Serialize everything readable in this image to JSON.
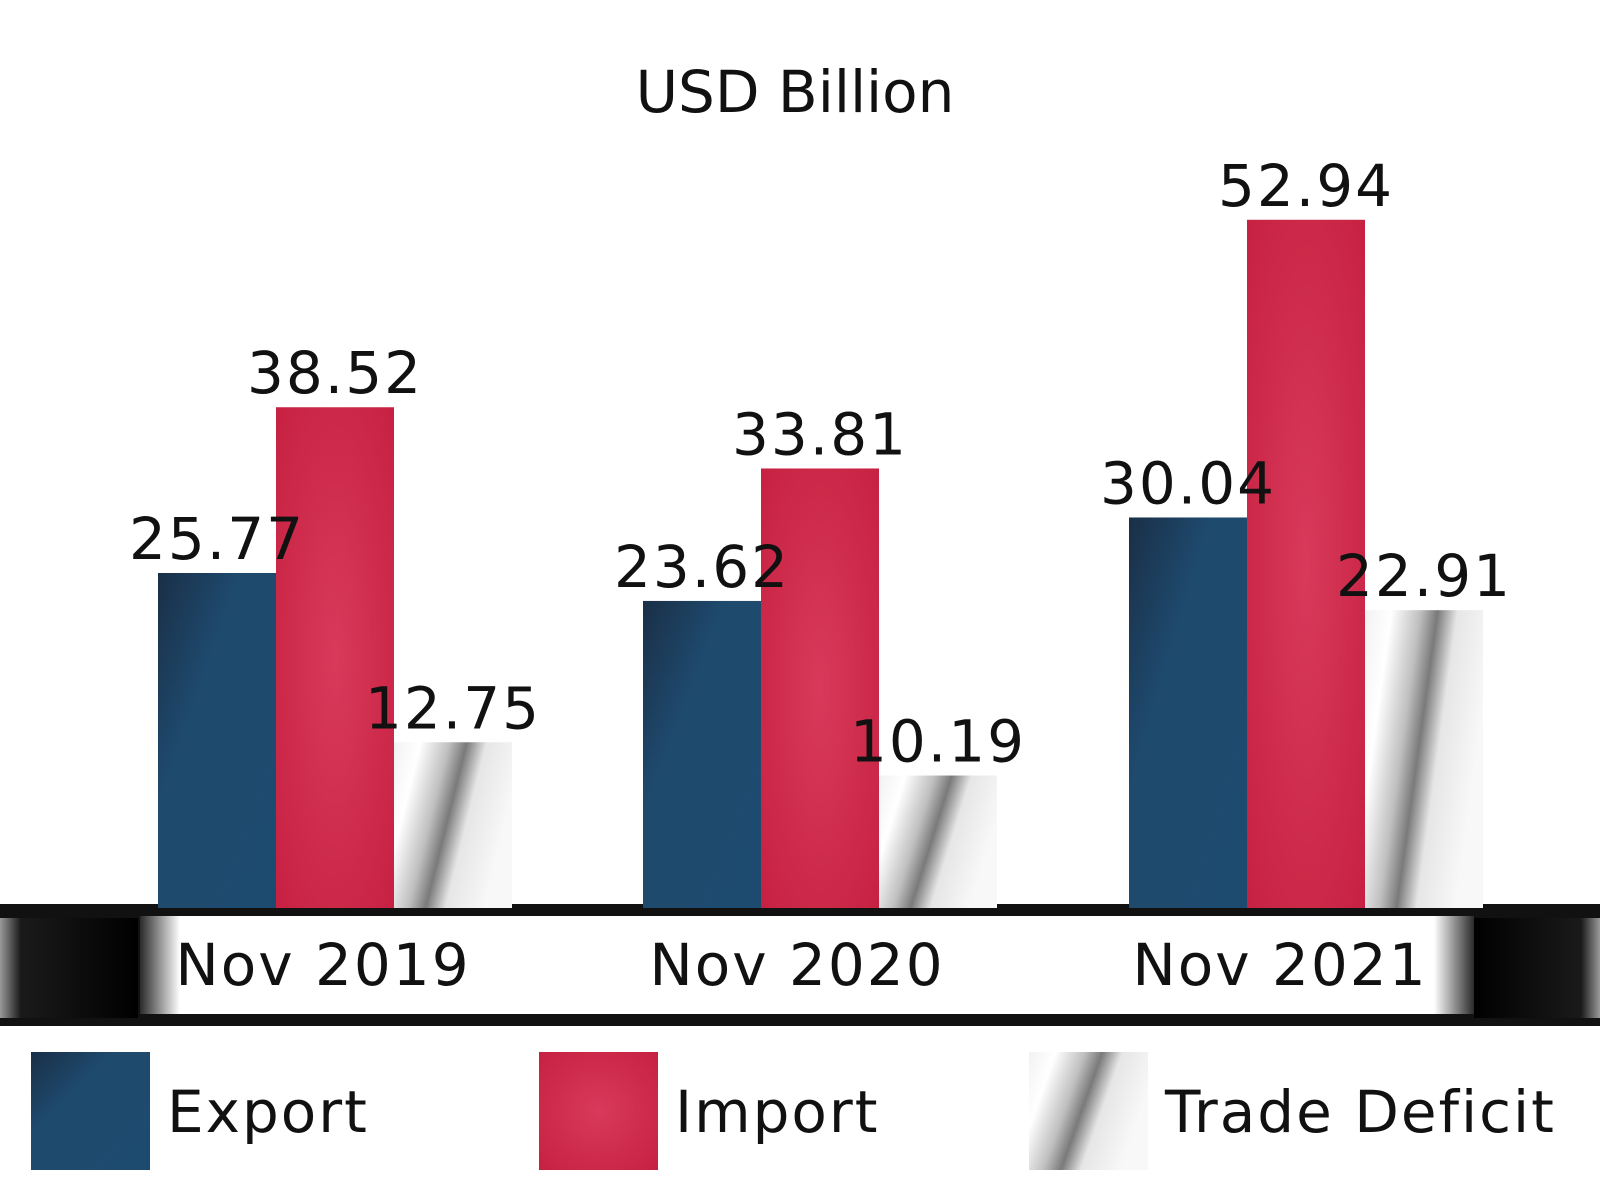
{
  "chart_data": {
    "type": "bar",
    "title": "USD Billion",
    "categories": [
      "Nov 2019",
      "Nov 2020",
      "Nov 2021"
    ],
    "series": [
      {
        "name": "Export",
        "values": [
          25.77,
          23.62,
          30.04
        ],
        "color": "#1d4a6c"
      },
      {
        "name": "Import",
        "values": [
          38.52,
          33.81,
          52.94
        ],
        "color": "#d0284a"
      },
      {
        "name": "Trade Deficit",
        "values": [
          12.75,
          10.19,
          22.91
        ],
        "color": "#c8c8c8"
      }
    ],
    "value_labels": [
      [
        "25.77",
        "23.62",
        "30.04"
      ],
      [
        "38.52",
        "33.81",
        "52.94"
      ],
      [
        "12.75",
        "10.19",
        "22.91"
      ]
    ],
    "ylim": [
      0,
      60
    ],
    "grid": false,
    "legend": "bottom"
  }
}
